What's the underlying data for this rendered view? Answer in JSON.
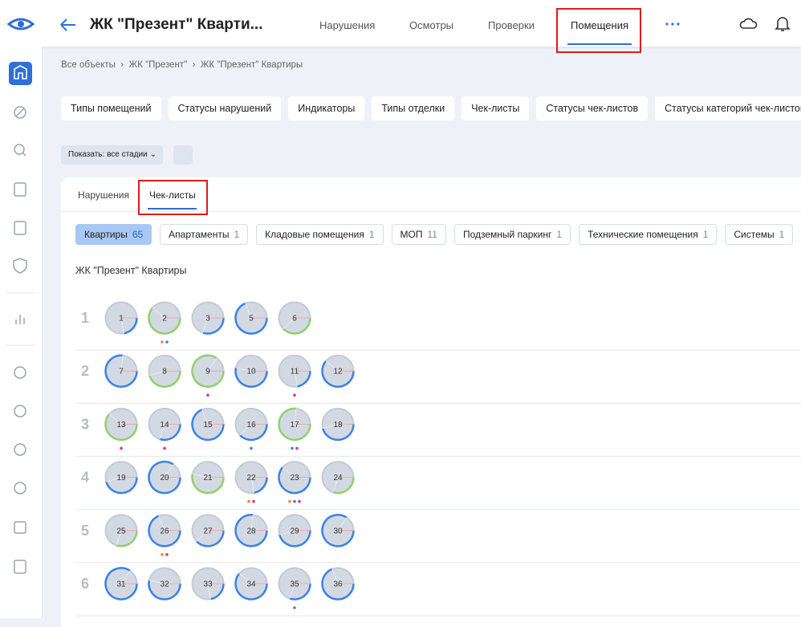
{
  "header": {
    "title": "ЖК \"Презент\" Кварти...",
    "nav": [
      "Нарушения",
      "Осмотры",
      "Проверки",
      "Помещения"
    ]
  },
  "breadcrumbs": [
    "Все объекты",
    "ЖК \"Презент\"",
    "ЖК \"Презент\" Квартиры"
  ],
  "filters": [
    "Типы помещений",
    "Статусы нарушений",
    "Индикаторы",
    "Типы отделки",
    "Чек-листы",
    "Статусы чек-листов",
    "Статусы категорий чек-листов"
  ],
  "show_select": "Показать: все стадии",
  "tabs": [
    "Нарушения",
    "Чек-листы"
  ],
  "categories": [
    {
      "label": "Квартиры",
      "count": 65
    },
    {
      "label": "Апартаменты",
      "count": 1
    },
    {
      "label": "Кладовые помещения",
      "count": 1
    },
    {
      "label": "МОП",
      "count": 11
    },
    {
      "label": "Подземный паркинг",
      "count": 1
    },
    {
      "label": "Технические помещения",
      "count": 1
    },
    {
      "label": "Системы",
      "count": 1
    }
  ],
  "section_title": "ЖК \"Презент\" Квартиры",
  "floors": [
    {
      "floor": 1,
      "rooms": [
        {
          "number": 1,
          "rim": "#3b82e8"
        },
        {
          "number": 2,
          "rim": "#8fd16a",
          "dots": [
            "#f0883e",
            "#3b82e8"
          ]
        },
        {
          "number": 3,
          "rim": "#3b82e8"
        },
        {
          "number": 5,
          "rim": "#3b82e8"
        },
        {
          "number": 6,
          "rim": "#8fd16a"
        }
      ]
    },
    {
      "floor": 2,
      "rooms": [
        {
          "number": 7,
          "rim": "#3b82e8"
        },
        {
          "number": 8,
          "rim": "#8fd16a"
        },
        {
          "number": 9,
          "rim": "#8fd16a",
          "dots": [
            "#e0338a"
          ]
        },
        {
          "number": 10,
          "rim": "#3b82e8"
        },
        {
          "number": 11,
          "rim": "#3b82e8",
          "dots": [
            "#e0338a"
          ]
        },
        {
          "number": 12,
          "rim": "#3b82e8"
        }
      ]
    },
    {
      "floor": 3,
      "rooms": [
        {
          "number": 13,
          "rim": "#8fd16a",
          "dots": [
            "#e0338a"
          ]
        },
        {
          "number": 14,
          "rim": "#3b82e8",
          "dots": [
            "#e0338a"
          ]
        },
        {
          "number": 15,
          "rim": "#3b82e8"
        },
        {
          "number": 16,
          "rim": "#3b82e8",
          "dots": [
            "#3b82e8"
          ]
        },
        {
          "number": 17,
          "rim": "#8fd16a",
          "dots": [
            "#3b82e8",
            "#e0338a"
          ]
        },
        {
          "number": 18,
          "rim": "#3b82e8"
        }
      ]
    },
    {
      "floor": 4,
      "rooms": [
        {
          "number": 19,
          "rim": "#3b82e8"
        },
        {
          "number": 20,
          "rim": "#3b82e8"
        },
        {
          "number": 21,
          "rim": "#8fd16a"
        },
        {
          "number": 22,
          "rim": "#3b82e8",
          "dots": [
            "#f0883e",
            "#e0338a"
          ]
        },
        {
          "number": 23,
          "rim": "#3b82e8",
          "dots": [
            "#f0883e",
            "#3b82e8",
            "#e0338a"
          ]
        },
        {
          "number": 24,
          "rim": "#8fd16a"
        }
      ]
    },
    {
      "floor": 5,
      "rooms": [
        {
          "number": 25,
          "rim": "#8fd16a"
        },
        {
          "number": 26,
          "rim": "#3b82e8",
          "dots": [
            "#f0883e",
            "#e0338a"
          ]
        },
        {
          "number": 27,
          "rim": "#3b82e8"
        },
        {
          "number": 28,
          "rim": "#3b82e8"
        },
        {
          "number": 29,
          "rim": "#3b82e8"
        },
        {
          "number": 30,
          "rim": "#3b82e8"
        }
      ]
    },
    {
      "floor": 6,
      "rooms": [
        {
          "number": 31,
          "rim": "#3b82e8"
        },
        {
          "number": 32,
          "rim": "#3b82e8"
        },
        {
          "number": 33,
          "rim": "#3b82e8"
        },
        {
          "number": 34,
          "rim": "#3b82e8"
        },
        {
          "number": 35,
          "rim": "#3b82e8",
          "dots": [
            "#3b82e8"
          ]
        },
        {
          "number": 36,
          "rim": "#3b82e8"
        }
      ]
    }
  ]
}
